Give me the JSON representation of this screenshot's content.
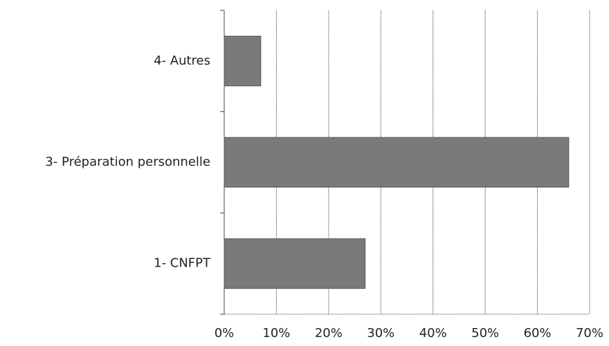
{
  "chart_data": {
    "type": "barh",
    "categories": [
      "1- CNFPT",
      "3- Préparation personnelle",
      "4- Autres"
    ],
    "values": [
      27,
      66,
      7
    ],
    "color": "#7a7a7a",
    "xlim": [
      0,
      70
    ],
    "xticks": [
      {
        "value": 0,
        "label": "0%"
      },
      {
        "value": 10,
        "label": "10%"
      },
      {
        "value": 20,
        "label": "20%"
      },
      {
        "value": 30,
        "label": "30%"
      },
      {
        "value": 40,
        "label": "40%"
      },
      {
        "value": 50,
        "label": "50%"
      },
      {
        "value": 60,
        "label": "60%"
      },
      {
        "value": 70,
        "label": "70%"
      }
    ],
    "grid": true
  }
}
